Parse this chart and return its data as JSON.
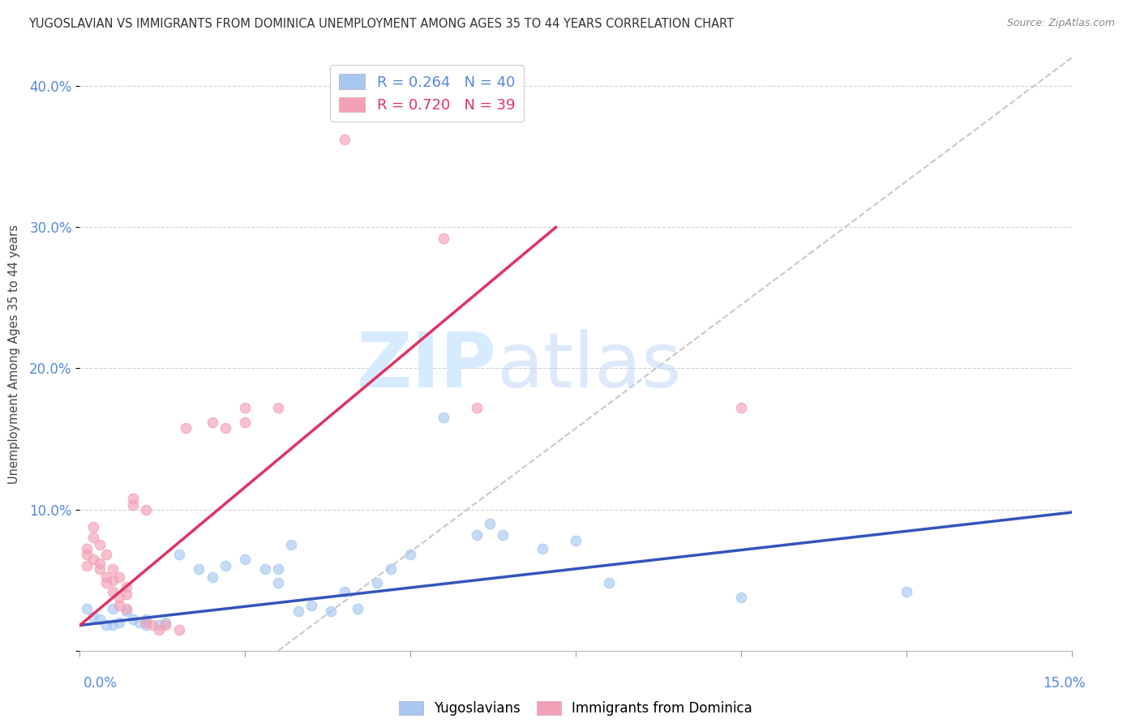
{
  "title": "YUGOSLAVIAN VS IMMIGRANTS FROM DOMINICA UNEMPLOYMENT AMONG AGES 35 TO 44 YEARS CORRELATION CHART",
  "source": "Source: ZipAtlas.com",
  "ylabel": "Unemployment Among Ages 35 to 44 years",
  "xlim": [
    0.0,
    0.15
  ],
  "ylim": [
    0.0,
    0.42
  ],
  "yticks": [
    0.0,
    0.1,
    0.2,
    0.3,
    0.4
  ],
  "ytick_labels": [
    "",
    "10.0%",
    "20.0%",
    "30.0%",
    "40.0%"
  ],
  "color_blue": "#a8c8f0",
  "color_pink": "#f4a0b8",
  "trendline_blue": "#3355bb",
  "trendline_pink": "#dd3366",
  "trendline_gray": "#bbbbbb",
  "blue_trendline_x0": 0.0,
  "blue_trendline_y0": 0.018,
  "blue_trendline_x1": 0.15,
  "blue_trendline_y1": 0.098,
  "pink_trendline_x0": 0.0,
  "pink_trendline_y0": 0.018,
  "pink_trendline_x1": 0.072,
  "pink_trendline_y1": 0.3,
  "gray_trendline_x0": 0.03,
  "gray_trendline_y0": 0.0,
  "gray_trendline_x1": 0.15,
  "gray_trendline_y1": 0.42,
  "blue_dots": [
    [
      0.001,
      0.03
    ],
    [
      0.002,
      0.024
    ],
    [
      0.003,
      0.022
    ],
    [
      0.004,
      0.018
    ],
    [
      0.005,
      0.03
    ],
    [
      0.005,
      0.018
    ],
    [
      0.006,
      0.02
    ],
    [
      0.007,
      0.028
    ],
    [
      0.008,
      0.022
    ],
    [
      0.009,
      0.02
    ],
    [
      0.01,
      0.018
    ],
    [
      0.01,
      0.022
    ],
    [
      0.012,
      0.018
    ],
    [
      0.013,
      0.02
    ],
    [
      0.015,
      0.068
    ],
    [
      0.018,
      0.058
    ],
    [
      0.02,
      0.052
    ],
    [
      0.022,
      0.06
    ],
    [
      0.025,
      0.065
    ],
    [
      0.028,
      0.058
    ],
    [
      0.03,
      0.058
    ],
    [
      0.03,
      0.048
    ],
    [
      0.032,
      0.075
    ],
    [
      0.033,
      0.028
    ],
    [
      0.035,
      0.032
    ],
    [
      0.038,
      0.028
    ],
    [
      0.04,
      0.042
    ],
    [
      0.042,
      0.03
    ],
    [
      0.045,
      0.048
    ],
    [
      0.047,
      0.058
    ],
    [
      0.05,
      0.068
    ],
    [
      0.055,
      0.165
    ],
    [
      0.06,
      0.082
    ],
    [
      0.062,
      0.09
    ],
    [
      0.064,
      0.082
    ],
    [
      0.07,
      0.072
    ],
    [
      0.075,
      0.078
    ],
    [
      0.08,
      0.048
    ],
    [
      0.1,
      0.038
    ],
    [
      0.125,
      0.042
    ]
  ],
  "pink_dots": [
    [
      0.001,
      0.068
    ],
    [
      0.001,
      0.06
    ],
    [
      0.001,
      0.072
    ],
    [
      0.002,
      0.088
    ],
    [
      0.002,
      0.08
    ],
    [
      0.002,
      0.065
    ],
    [
      0.003,
      0.075
    ],
    [
      0.003,
      0.058
    ],
    [
      0.003,
      0.062
    ],
    [
      0.004,
      0.068
    ],
    [
      0.004,
      0.052
    ],
    [
      0.004,
      0.048
    ],
    [
      0.005,
      0.058
    ],
    [
      0.005,
      0.05
    ],
    [
      0.005,
      0.042
    ],
    [
      0.006,
      0.052
    ],
    [
      0.006,
      0.038
    ],
    [
      0.006,
      0.032
    ],
    [
      0.007,
      0.045
    ],
    [
      0.007,
      0.04
    ],
    [
      0.007,
      0.03
    ],
    [
      0.008,
      0.108
    ],
    [
      0.008,
      0.103
    ],
    [
      0.01,
      0.1
    ],
    [
      0.01,
      0.02
    ],
    [
      0.011,
      0.018
    ],
    [
      0.012,
      0.015
    ],
    [
      0.013,
      0.018
    ],
    [
      0.015,
      0.015
    ],
    [
      0.016,
      0.158
    ],
    [
      0.02,
      0.162
    ],
    [
      0.022,
      0.158
    ],
    [
      0.025,
      0.172
    ],
    [
      0.025,
      0.162
    ],
    [
      0.03,
      0.172
    ],
    [
      0.04,
      0.362
    ],
    [
      0.055,
      0.292
    ],
    [
      0.06,
      0.172
    ],
    [
      0.1,
      0.172
    ]
  ]
}
